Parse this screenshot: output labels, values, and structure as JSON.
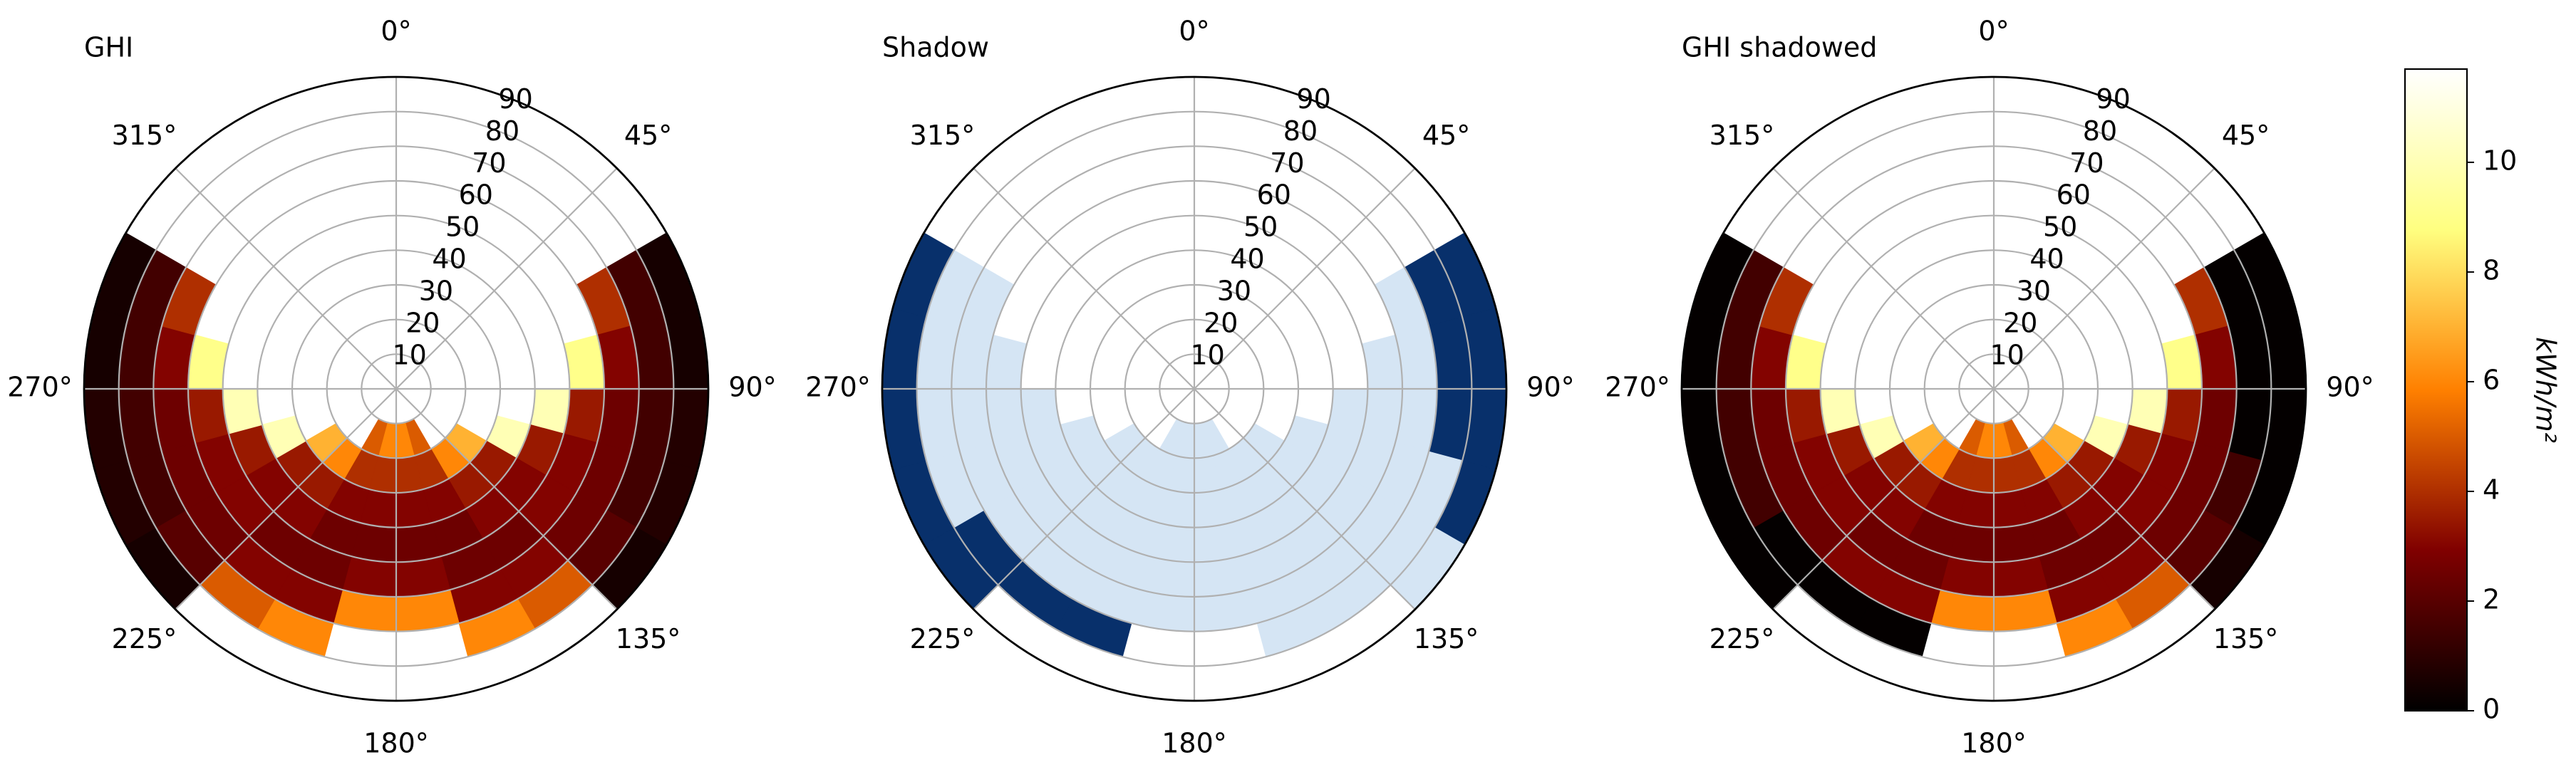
{
  "chart_data": [
    {
      "type": "polar_heatmap",
      "title": "GHI",
      "azimuth_bins": [
        60,
        75,
        90,
        105,
        120,
        135,
        150,
        165,
        180,
        195,
        210,
        225,
        240,
        255,
        270,
        285,
        300
      ],
      "radius_bins": [
        0,
        10,
        20,
        30,
        40,
        50,
        60,
        70,
        80,
        90
      ],
      "rlim": [
        0,
        90
      ],
      "rticks": [
        10,
        20,
        30,
        40,
        50,
        60,
        70,
        80,
        90
      ],
      "thetaticks": [
        {
          "value": 0,
          "label": "0°"
        },
        {
          "value": 45,
          "label": "45°"
        },
        {
          "value": 90,
          "label": "90°"
        },
        {
          "value": 135,
          "label": "135°"
        },
        {
          "value": 180,
          "label": "180°"
        },
        {
          "value": 225,
          "label": "225°"
        },
        {
          "value": 270,
          "label": "270°"
        },
        {
          "value": 315,
          "label": "315°"
        }
      ],
      "values": [
        [
          null,
          null,
          null,
          null,
          null,
          null,
          4,
          1.5,
          0.5
        ],
        [
          null,
          null,
          null,
          null,
          null,
          9,
          3,
          1.5,
          0.5
        ],
        [
          null,
          null,
          null,
          null,
          10,
          3.5,
          2.5,
          1.5,
          0.8
        ],
        [
          null,
          null,
          null,
          10,
          3.5,
          3,
          2.5,
          1.5,
          0.8
        ],
        [
          null,
          null,
          7,
          3.5,
          3,
          3,
          2.5,
          2,
          0.5
        ],
        [
          null,
          null,
          6,
          3.5,
          3,
          2.5,
          3,
          5,
          null
        ],
        [
          null,
          5,
          4,
          3,
          2.5,
          2.5,
          3,
          6,
          null
        ],
        [
          null,
          6,
          4,
          3,
          2.5,
          3,
          6,
          null,
          null
        ],
        [
          null,
          6,
          4,
          3,
          2.5,
          3,
          6,
          null,
          null
        ],
        [
          null,
          5,
          4,
          3,
          2.5,
          2.5,
          3,
          6,
          null
        ],
        [
          null,
          null,
          6,
          3.5,
          3,
          2.5,
          3,
          5,
          null
        ],
        [
          null,
          null,
          7,
          3.5,
          3,
          3,
          2.5,
          2,
          0.5
        ],
        [
          null,
          null,
          null,
          10,
          3.5,
          3,
          2.5,
          1.5,
          0.8
        ],
        [
          null,
          null,
          null,
          null,
          10,
          3.5,
          2.5,
          1.5,
          0.8
        ],
        [
          null,
          null,
          null,
          null,
          null,
          9,
          3,
          1.5,
          0.5
        ],
        [
          null,
          null,
          null,
          null,
          null,
          null,
          4,
          1.5,
          0.5
        ]
      ]
    },
    {
      "type": "polar_category",
      "title": "Shadow",
      "azimuth_bins": [
        60,
        75,
        90,
        105,
        120,
        135,
        150,
        165,
        180,
        195,
        210,
        225,
        240,
        255,
        270,
        285,
        300
      ],
      "radius_bins": [
        0,
        10,
        20,
        30,
        40,
        50,
        60,
        70,
        80,
        90
      ],
      "rlim": [
        0,
        90
      ],
      "rticks": [
        10,
        20,
        30,
        40,
        50,
        60,
        70,
        80,
        90
      ],
      "thetaticks": [
        {
          "value": 0,
          "label": "0°"
        },
        {
          "value": 45,
          "label": "45°"
        },
        {
          "value": 90,
          "label": "90°"
        },
        {
          "value": 135,
          "label": "135°"
        },
        {
          "value": 180,
          "label": "180°"
        },
        {
          "value": 225,
          "label": "225°"
        },
        {
          "value": 270,
          "label": "270°"
        },
        {
          "value": 315,
          "label": "315°"
        }
      ],
      "value_colors": [
        "#d5e5f4",
        "#08306b"
      ],
      "values": [
        [
          null,
          null,
          null,
          null,
          null,
          null,
          0,
          1,
          1
        ],
        [
          null,
          null,
          null,
          null,
          null,
          0,
          0,
          1,
          1
        ],
        [
          null,
          null,
          null,
          null,
          0,
          0,
          0,
          1,
          1
        ],
        [
          null,
          null,
          null,
          0,
          0,
          0,
          0,
          0,
          1
        ],
        [
          null,
          null,
          0,
          0,
          0,
          0,
          0,
          0,
          0
        ],
        [
          null,
          null,
          0,
          0,
          0,
          0,
          0,
          0,
          null
        ],
        [
          null,
          0,
          0,
          0,
          0,
          0,
          0,
          0,
          null
        ],
        [
          null,
          0,
          0,
          0,
          0,
          0,
          0,
          null,
          null
        ],
        [
          null,
          0,
          0,
          0,
          0,
          0,
          0,
          null,
          null
        ],
        [
          null,
          0,
          0,
          0,
          0,
          0,
          0,
          1,
          null
        ],
        [
          null,
          null,
          0,
          0,
          0,
          0,
          0,
          1,
          null
        ],
        [
          null,
          null,
          0,
          0,
          0,
          0,
          0,
          1,
          1
        ],
        [
          null,
          null,
          null,
          0,
          0,
          0,
          0,
          0,
          1
        ],
        [
          null,
          null,
          null,
          null,
          0,
          0,
          0,
          0,
          1
        ],
        [
          null,
          null,
          null,
          null,
          null,
          0,
          0,
          0,
          1
        ],
        [
          null,
          null,
          null,
          null,
          null,
          null,
          0,
          0,
          1
        ]
      ]
    },
    {
      "type": "polar_heatmap",
      "title": "GHI shadowed",
      "azimuth_bins": [
        60,
        75,
        90,
        105,
        120,
        135,
        150,
        165,
        180,
        195,
        210,
        225,
        240,
        255,
        270,
        285,
        300
      ],
      "radius_bins": [
        0,
        10,
        20,
        30,
        40,
        50,
        60,
        70,
        80,
        90
      ],
      "rlim": [
        0,
        90
      ],
      "rticks": [
        10,
        20,
        30,
        40,
        50,
        60,
        70,
        80,
        90
      ],
      "thetaticks": [
        {
          "value": 0,
          "label": "0°"
        },
        {
          "value": 45,
          "label": "45°"
        },
        {
          "value": 90,
          "label": "90°"
        },
        {
          "value": 135,
          "label": "135°"
        },
        {
          "value": 180,
          "label": "180°"
        },
        {
          "value": 225,
          "label": "225°"
        },
        {
          "value": 270,
          "label": "270°"
        },
        {
          "value": 315,
          "label": "315°"
        }
      ],
      "values": [
        [
          null,
          null,
          null,
          null,
          null,
          null,
          4,
          0.1,
          0.1
        ],
        [
          null,
          null,
          null,
          null,
          null,
          9,
          3,
          0.1,
          0.1
        ],
        [
          null,
          null,
          null,
          null,
          10,
          3.5,
          2.5,
          0.1,
          0.1
        ],
        [
          null,
          null,
          null,
          10,
          3.5,
          3,
          2.5,
          1.5,
          0.1
        ],
        [
          null,
          null,
          7,
          3.5,
          3,
          3,
          2.5,
          2,
          0.5
        ],
        [
          null,
          null,
          6,
          3.5,
          3,
          2.5,
          3,
          5,
          null
        ],
        [
          null,
          5,
          4,
          3,
          2.5,
          2.5,
          3,
          6,
          null
        ],
        [
          null,
          6,
          4,
          3,
          2.5,
          3,
          6,
          null,
          null
        ],
        [
          null,
          6,
          4,
          3,
          2.5,
          3,
          6,
          null,
          null
        ],
        [
          null,
          5,
          4,
          3,
          2.5,
          2.5,
          3,
          0.1,
          null
        ],
        [
          null,
          null,
          6,
          3.5,
          3,
          2.5,
          3,
          0.1,
          null
        ],
        [
          null,
          null,
          7,
          3.5,
          3,
          3,
          2.5,
          0.1,
          0.1
        ],
        [
          null,
          null,
          null,
          10,
          3.5,
          3,
          2.5,
          1.5,
          0.1
        ],
        [
          null,
          null,
          null,
          null,
          10,
          3.5,
          2.5,
          1.5,
          0.1
        ],
        [
          null,
          null,
          null,
          null,
          null,
          9,
          3,
          1.5,
          0.1
        ],
        [
          null,
          null,
          null,
          null,
          null,
          null,
          4,
          1.5,
          0.1
        ]
      ]
    }
  ],
  "colorbar": {
    "label": "kWh/m²",
    "lim": [
      0,
      11.7
    ],
    "ticks": [
      0,
      2,
      4,
      6,
      8,
      10
    ],
    "colormap": [
      "#000000",
      "#800000",
      "#ff8000",
      "#ffff80",
      "#ffffff"
    ]
  }
}
